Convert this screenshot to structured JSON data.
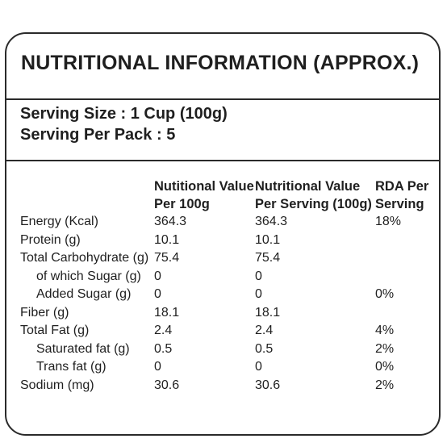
{
  "title": "NUTRITIONAL INFORMATION (APPROX.)",
  "serving_size": "Serving Size : 1 Cup (100g)",
  "serving_per_pack": "Serving Per Pack : 5",
  "headers": {
    "col1_line1": "Nutitional Value",
    "col1_line2": "Per 100g",
    "col2_line1": "Nutritional Value",
    "col2_line2": "Per Serving (100g)",
    "col3_line1": "RDA Per",
    "col3_line2": "Serving"
  },
  "rows": [
    {
      "label": "Energy (Kcal)",
      "per100": "364.3",
      "per_serving": "364.3",
      "rda": "18%",
      "indent": false
    },
    {
      "label": "Protein (g)",
      "per100": "10.1",
      "per_serving": "10.1",
      "rda": "",
      "indent": false
    },
    {
      "label": "Total Carbohydrate (g)",
      "per100": "75.4",
      "per_serving": "75.4",
      "rda": "",
      "indent": false
    },
    {
      "label": "of which Sugar (g)",
      "per100": "0",
      "per_serving": "0",
      "rda": "",
      "indent": true
    },
    {
      "label": "Added Sugar (g)",
      "per100": "0",
      "per_serving": "0",
      "rda": "0%",
      "indent": true
    },
    {
      "label": "Fiber (g)",
      "per100": "18.1",
      "per_serving": "18.1",
      "rda": "",
      "indent": false
    },
    {
      "label": "Total Fat (g)",
      "per100": "2.4",
      "per_serving": "2.4",
      "rda": "4%",
      "indent": false
    },
    {
      "label": "Saturated fat (g)",
      "per100": "0.5",
      "per_serving": "0.5",
      "rda": "2%",
      "indent": true
    },
    {
      "label": "Trans fat (g)",
      "per100": "0",
      "per_serving": "0",
      "rda": "0%",
      "indent": true
    },
    {
      "label": "Sodium (mg)",
      "per100": "30.6",
      "per_serving": "30.6",
      "rda": "2%",
      "indent": false
    }
  ]
}
